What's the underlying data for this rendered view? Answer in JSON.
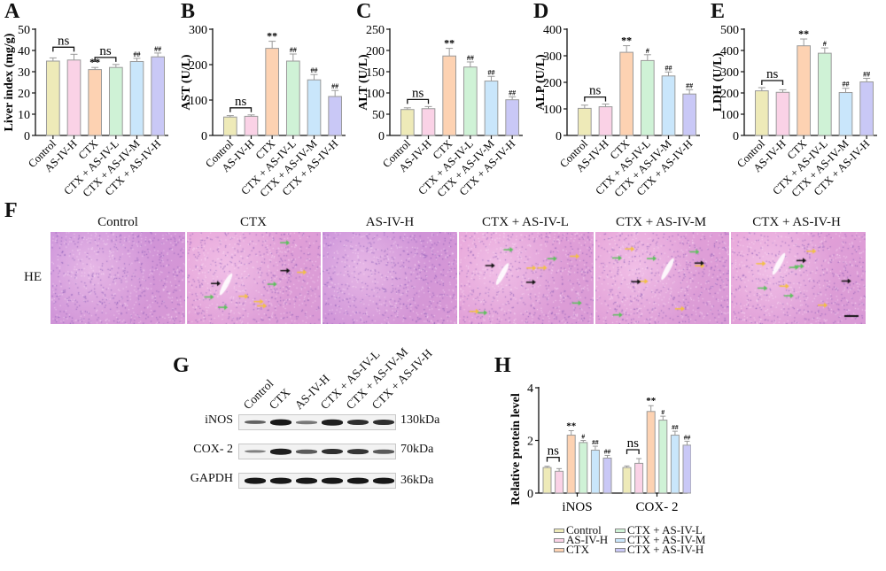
{
  "figure": {
    "groups": [
      "Control",
      "AS-IV-H",
      "CTX",
      "CTX + AS-IV-L",
      "CTX + AS-IV-M",
      "CTX + AS-IV-H"
    ],
    "colors": {
      "Control": "#eeeab8",
      "AS-IV-H": "#fad2e6",
      "CTX": "#fdd2b2",
      "CTX + AS-IV-L": "#cff2d6",
      "CTX + AS-IV-M": "#c9e6fb",
      "CTX + AS-IV-H": "#c9c8f6",
      "bar_border": "#9a9a9a"
    },
    "panels": {
      "A": "A",
      "B": "B",
      "C": "C",
      "D": "D",
      "E": "E",
      "F": "F",
      "G": "G",
      "H": "H"
    }
  },
  "chart_data": [
    {
      "panel": "A",
      "type": "bar",
      "title": "",
      "xlabel": "",
      "ylabel": "Liver index (mg/g)",
      "categories": [
        "Control",
        "AS-IV-H",
        "CTX",
        "CTX + AS-IV-L",
        "CTX + AS-IV-M",
        "CTX + AS-IV-H"
      ],
      "values": [
        35,
        35.5,
        31,
        32,
        34.8,
        37
      ],
      "errors": [
        1.5,
        2.7,
        1,
        1.4,
        1.5,
        1.8
      ],
      "annotations": [
        "",
        "",
        "**",
        "",
        "##",
        "##"
      ],
      "brackets": [
        {
          "from": 0,
          "to": 1,
          "label": "ns"
        },
        {
          "from": 2,
          "to": 3,
          "label": "ns"
        }
      ],
      "ylim": [
        0,
        50
      ],
      "yticks": [
        0,
        10,
        20,
        30,
        40,
        50
      ],
      "grid": false
    },
    {
      "panel": "B",
      "type": "bar",
      "ylabel": "AST (U/L)",
      "categories": [
        "Control",
        "AS-IV-H",
        "CTX",
        "CTX + AS-IV-L",
        "CTX + AS-IV-M",
        "CTX + AS-IV-H"
      ],
      "values": [
        52,
        54,
        246,
        210,
        157,
        110
      ],
      "errors": [
        4,
        4,
        20,
        20,
        15,
        17
      ],
      "annotations": [
        "",
        "",
        "**",
        "##",
        "##",
        "##"
      ],
      "brackets": [
        {
          "from": 0,
          "to": 1,
          "label": "ns"
        }
      ],
      "ylim": [
        0,
        300
      ],
      "yticks": [
        0,
        100,
        200,
        300
      ],
      "grid": false
    },
    {
      "panel": "C",
      "type": "bar",
      "ylabel": "ALT (U/L)",
      "categories": [
        "Control",
        "AS-IV-H",
        "CTX",
        "CTX + AS-IV-L",
        "CTX + AS-IV-M",
        "CTX + AS-IV-H"
      ],
      "values": [
        61,
        63,
        187,
        161,
        128,
        84
      ],
      "errors": [
        4,
        5,
        18,
        12,
        11,
        7
      ],
      "annotations": [
        "",
        "",
        "**",
        "##",
        "##",
        "##"
      ],
      "brackets": [
        {
          "from": 0,
          "to": 1,
          "label": "ns"
        }
      ],
      "ylim": [
        0,
        250
      ],
      "yticks": [
        0,
        50,
        100,
        150,
        200,
        250
      ],
      "grid": false
    },
    {
      "panel": "D",
      "type": "bar",
      "ylabel": "ALP (U/L)",
      "categories": [
        "Control",
        "AS-IV-H",
        "CTX",
        "CTX + AS-IV-L",
        "CTX + AS-IV-M",
        "CTX + AS-IV-H"
      ],
      "values": [
        102,
        108,
        313,
        282,
        224,
        156
      ],
      "errors": [
        12,
        10,
        25,
        22,
        15,
        16
      ],
      "annotations": [
        "",
        "",
        "**",
        "#",
        "##",
        "##"
      ],
      "brackets": [
        {
          "from": 0,
          "to": 1,
          "label": "ns"
        }
      ],
      "ylim": [
        0,
        400
      ],
      "yticks": [
        0,
        100,
        200,
        300,
        400
      ],
      "grid": false
    },
    {
      "panel": "E",
      "type": "bar",
      "ylabel": "LDH (U/L)",
      "categories": [
        "Control",
        "AS-IV-H",
        "CTX",
        "CTX + AS-IV-L",
        "CTX + AS-IV-M",
        "CTX + AS-IV-H"
      ],
      "values": [
        210,
        203,
        422,
        387,
        202,
        252
      ],
      "errors": [
        15,
        12,
        32,
        25,
        20,
        17
      ],
      "annotations": [
        "",
        "",
        "**",
        "#",
        "##",
        "##"
      ],
      "brackets": [
        {
          "from": 0,
          "to": 1,
          "label": "ns"
        }
      ],
      "ylim": [
        0,
        500
      ],
      "yticks": [
        0,
        100,
        200,
        300,
        400,
        500
      ],
      "grid": false
    },
    {
      "panel": "H",
      "type": "bar",
      "ylabel": "Relative protein level",
      "categories": [
        "iNOS",
        "COX- 2"
      ],
      "series": [
        {
          "name": "Control",
          "values": [
            0.97,
            0.97
          ],
          "errors": [
            0.05,
            0.06
          ]
        },
        {
          "name": "AS-IV-H",
          "values": [
            0.83,
            1.13
          ],
          "errors": [
            0.1,
            0.18
          ]
        },
        {
          "name": "CTX",
          "values": [
            2.2,
            3.1
          ],
          "errors": [
            0.17,
            0.22
          ]
        },
        {
          "name": "CTX + AS-IV-L",
          "values": [
            1.92,
            2.77
          ],
          "errors": [
            0.08,
            0.15
          ]
        },
        {
          "name": "CTX + AS-IV-M",
          "values": [
            1.63,
            2.2
          ],
          "errors": [
            0.15,
            0.15
          ]
        },
        {
          "name": "CTX + AS-IV-H",
          "values": [
            1.33,
            1.82
          ],
          "errors": [
            0.1,
            0.15
          ]
        }
      ],
      "annotations": [
        [
          "",
          "",
          "**",
          "#",
          "##",
          "##"
        ],
        [
          "",
          "",
          "**",
          "#",
          "##",
          "##"
        ]
      ],
      "brackets": [
        {
          "category": 0,
          "from": 0,
          "to": 1,
          "label": "ns"
        },
        {
          "category": 1,
          "from": 0,
          "to": 1,
          "label": "ns"
        }
      ],
      "ylim": [
        0,
        4
      ],
      "yticks": [
        0,
        2,
        4
      ],
      "legend": [
        "Control",
        "AS-IV-H",
        "CTX",
        "CTX + AS-IV-L",
        "CTX + AS-IV-M",
        "CTX + AS-IV-H"
      ],
      "legend_position": "bottom",
      "grid": false
    }
  ],
  "he": {
    "row_label": "HE",
    "titles": [
      "Control",
      "CTX",
      "AS-IV-H",
      "CTX + AS-IV-L",
      "CTX + AS-IV-M",
      "CTX + AS-IV-H"
    ]
  },
  "western": {
    "lanes": [
      "Control",
      "CTX",
      "AS-IV-H",
      "CTX + AS-IV-L",
      "CTX + AS-IV-M",
      "CTX + AS-IV-H"
    ],
    "rows": [
      {
        "protein": "iNOS",
        "kda": "130kDa",
        "intensity": [
          0.45,
          0.95,
          0.3,
          0.9,
          0.8,
          0.8
        ]
      },
      {
        "protein": "COX- 2",
        "kda": "70kDa",
        "intensity": [
          0.25,
          0.9,
          0.5,
          0.8,
          0.75,
          0.5
        ]
      },
      {
        "protein": "GAPDH",
        "kda": "36kDa",
        "intensity": [
          0.95,
          0.95,
          0.95,
          0.95,
          0.95,
          0.95
        ]
      }
    ]
  }
}
